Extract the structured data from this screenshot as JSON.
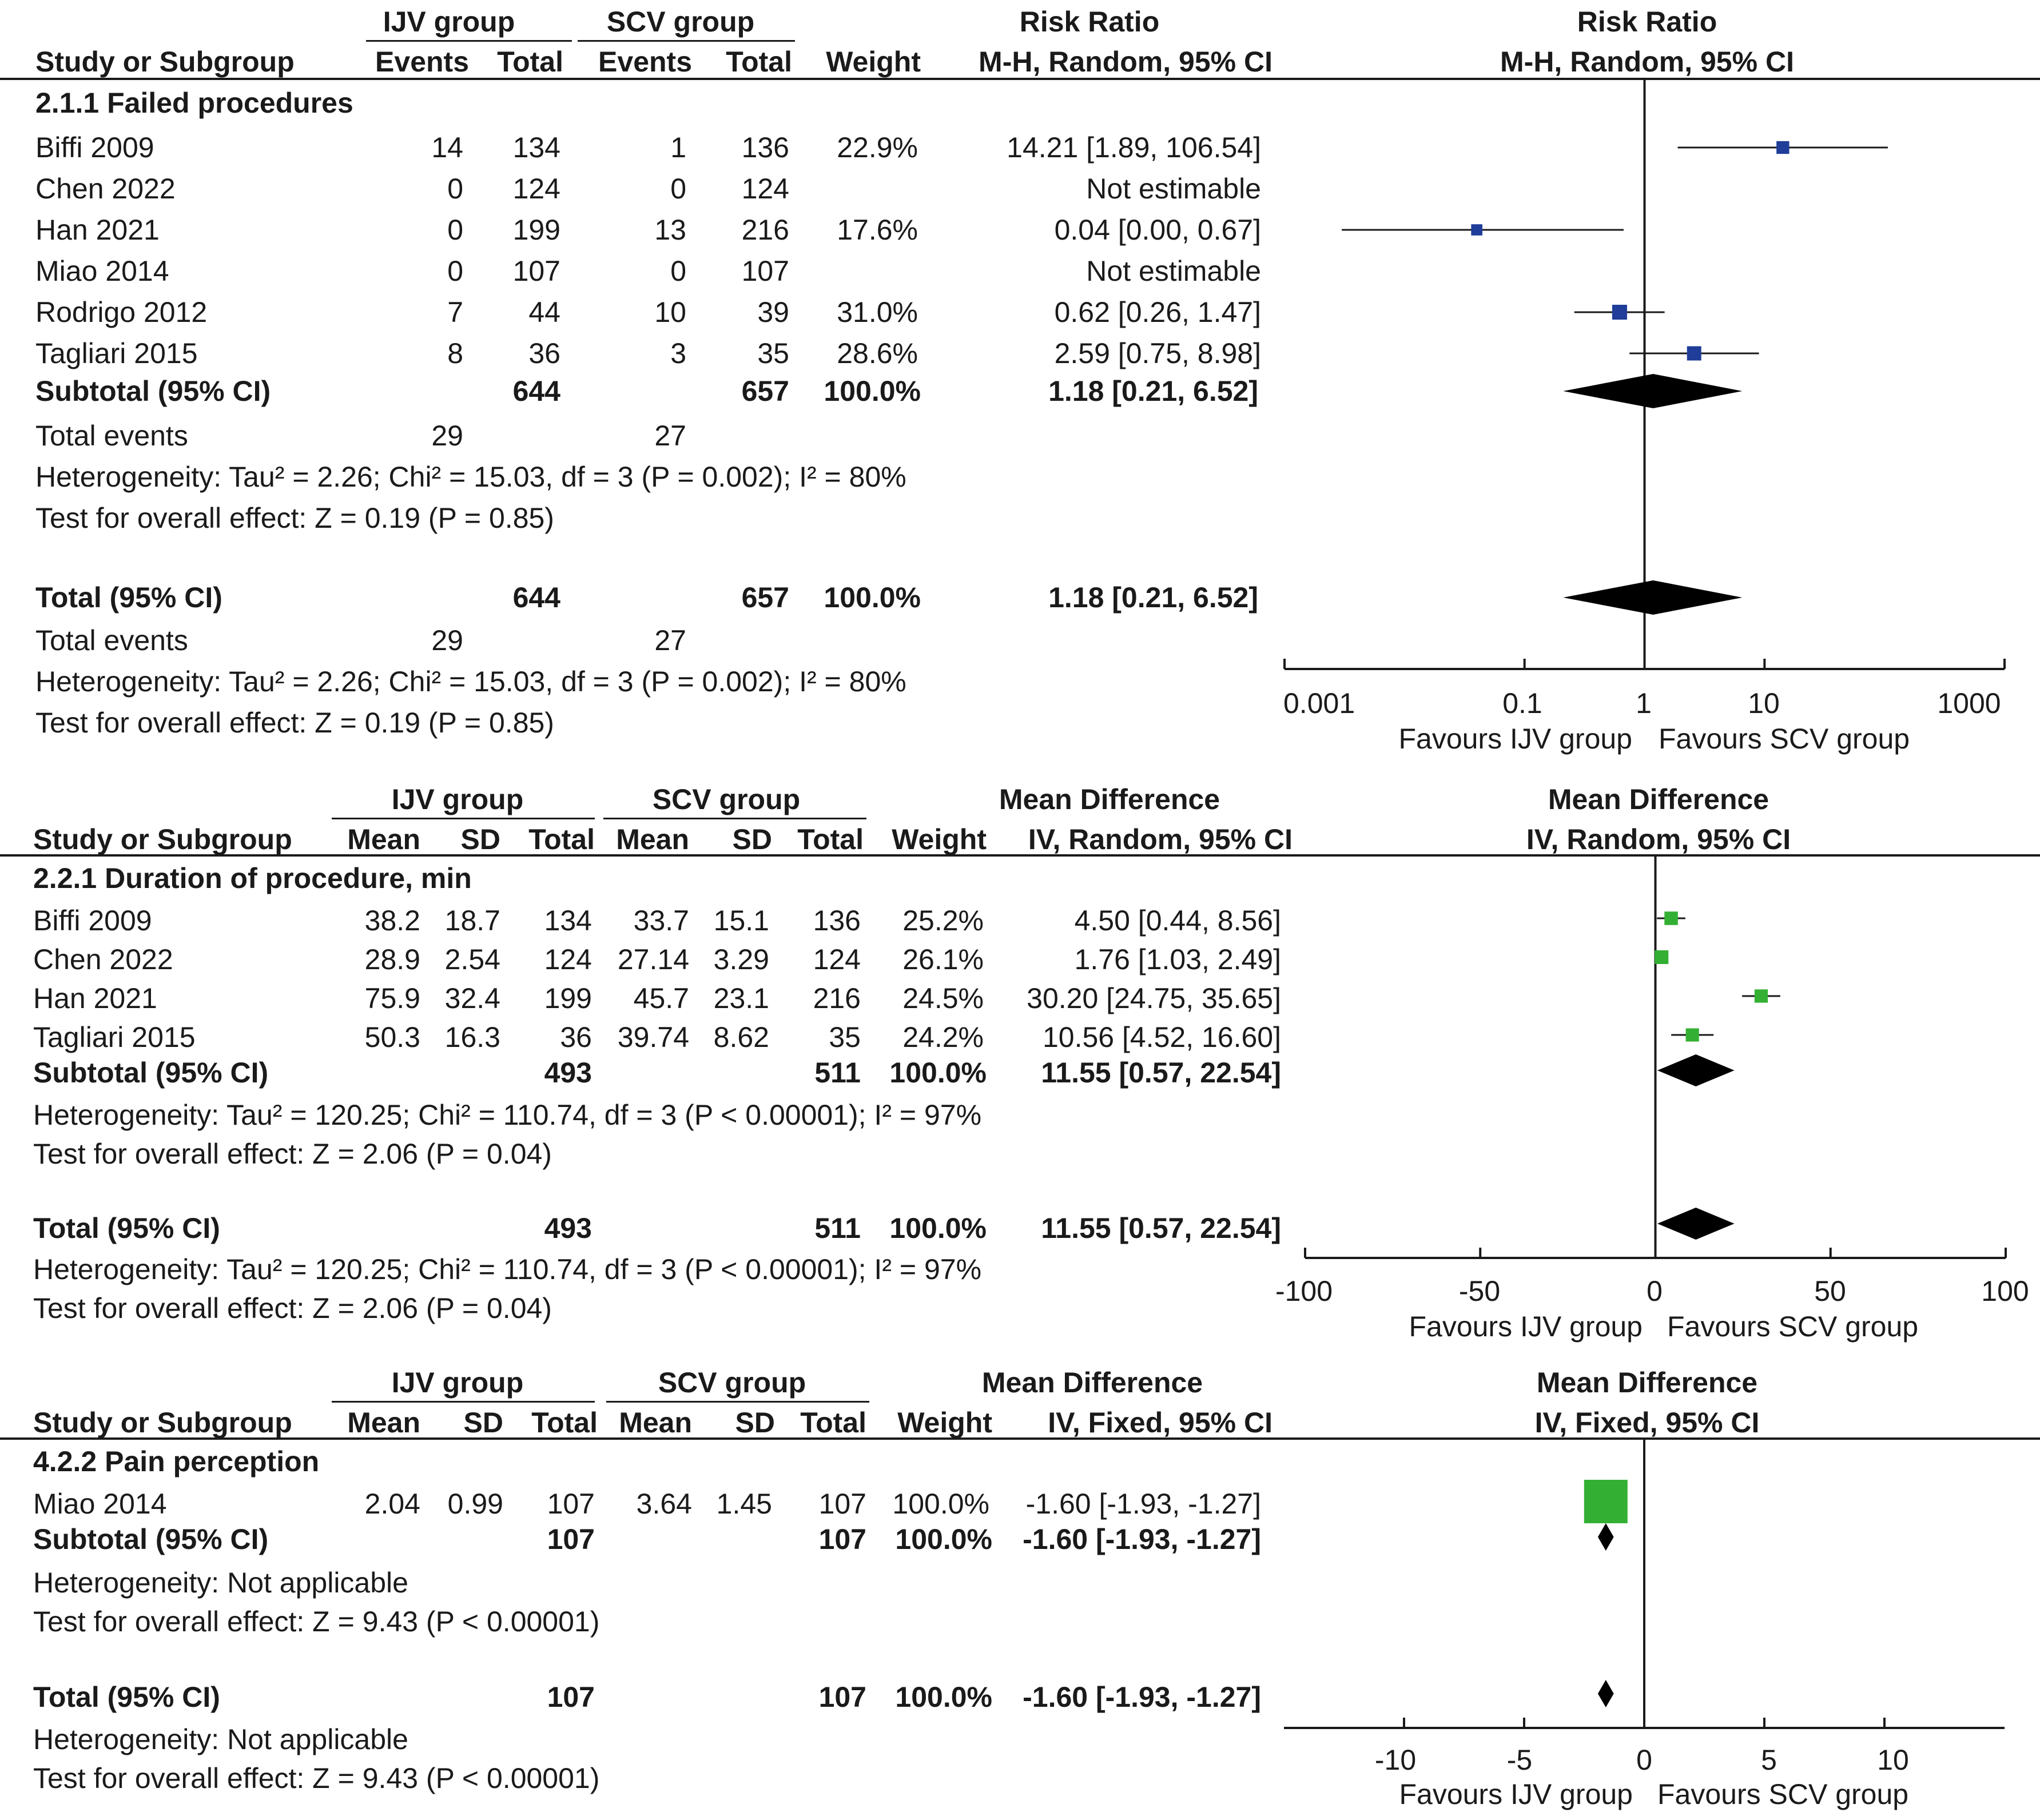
{
  "chart_data": [
    {
      "type": "forest",
      "measure": "Risk Ratio",
      "method": "M-H, Random, 95% CI",
      "scale": "log",
      "xlim": [
        0.001,
        1000
      ],
      "null_value": 1,
      "tick_values": [
        0.001,
        0.1,
        1,
        10,
        1000
      ],
      "tick_labels": [
        "0.001",
        "0.1",
        "1",
        "10",
        "1000"
      ],
      "favours_left": "Favours IJV group",
      "favours_right": "Favours SCV group",
      "header": {
        "group1": "IJV group",
        "group2": "SCV group",
        "study": "Study or Subgroup",
        "events": "Events",
        "total": "Total",
        "weight": "Weight",
        "measure": "Risk Ratio",
        "method": "M-H, Random, 95% CI"
      },
      "subgroup_title": "2.1.1 Failed procedures",
      "studies": [
        {
          "name": "Biffi 2009",
          "e1": "14",
          "n1": "134",
          "e2": "1",
          "n2": "136",
          "weight": "22.9%",
          "ci_text": "14.21 [1.89, 106.54]",
          "est": 14.21,
          "lo": 1.89,
          "hi": 106.54,
          "w": 22.9
        },
        {
          "name": "Chen 2022",
          "e1": "0",
          "n1": "124",
          "e2": "0",
          "n2": "124",
          "weight": "",
          "ci_text": "Not estimable",
          "est": null,
          "lo": null,
          "hi": null,
          "w": 0
        },
        {
          "name": "Han 2021",
          "e1": "0",
          "n1": "199",
          "e2": "13",
          "n2": "216",
          "weight": "17.6%",
          "ci_text": "0.04 [0.00, 0.67]",
          "est": 0.04,
          "lo": 0.003,
          "hi": 0.67,
          "w": 17.6
        },
        {
          "name": "Miao 2014",
          "e1": "0",
          "n1": "107",
          "e2": "0",
          "n2": "107",
          "weight": "",
          "ci_text": "Not estimable",
          "est": null,
          "lo": null,
          "hi": null,
          "w": 0
        },
        {
          "name": "Rodrigo 2012",
          "e1": "7",
          "n1": "44",
          "e2": "10",
          "n2": "39",
          "weight": "31.0%",
          "ci_text": "0.62 [0.26, 1.47]",
          "est": 0.62,
          "lo": 0.26,
          "hi": 1.47,
          "w": 31.0
        },
        {
          "name": "Tagliari 2015",
          "e1": "8",
          "n1": "36",
          "e2": "3",
          "n2": "35",
          "weight": "28.6%",
          "ci_text": "2.59 [0.75, 8.98]",
          "est": 2.59,
          "lo": 0.75,
          "hi": 8.98,
          "w": 28.6
        }
      ],
      "subtotal": {
        "label": "Subtotal (95% CI)",
        "n1": "644",
        "n2": "657",
        "weight": "100.0%",
        "ci_text": "1.18 [0.21, 6.52]",
        "est": 1.18,
        "lo": 0.21,
        "hi": 6.52
      },
      "subtotal_events": {
        "label": "Total events",
        "e1": "29",
        "e2": "27"
      },
      "subtotal_het": "Heterogeneity: Tau² = 2.26; Chi² = 15.03, df = 3 (P = 0.002); I² = 80%",
      "subtotal_test": "Test for overall effect: Z = 0.19 (P = 0.85)",
      "total": {
        "label": "Total (95% CI)",
        "n1": "644",
        "n2": "657",
        "weight": "100.0%",
        "ci_text": "1.18 [0.21, 6.52]",
        "est": 1.18,
        "lo": 0.21,
        "hi": 6.52
      },
      "total_events": {
        "label": "Total events",
        "e1": "29",
        "e2": "27"
      },
      "total_het": "Heterogeneity: Tau² = 2.26; Chi² = 15.03, df = 3 (P = 0.002); I² = 80%",
      "total_test": "Test for overall effect: Z = 0.19 (P = 0.85)",
      "colors": {
        "marker": "#1f3d99",
        "line": "#1a1a1a",
        "diamond": "#000000"
      }
    },
    {
      "type": "forest",
      "measure": "Mean Difference",
      "method": "IV, Random, 95% CI",
      "scale": "linear",
      "xlim": [
        -100,
        100
      ],
      "null_value": 0,
      "tick_values": [
        -100,
        -50,
        0,
        50,
        100
      ],
      "tick_labels": [
        "-100",
        "-50",
        "0",
        "50",
        "100"
      ],
      "favours_left": "Favours IJV group",
      "favours_right": "Favours SCV group",
      "header": {
        "group1": "IJV group",
        "group2": "SCV group",
        "study": "Study or Subgroup",
        "mean": "Mean",
        "sd": "SD",
        "total": "Total",
        "weight": "Weight",
        "measure": "Mean Difference",
        "method": "IV, Random, 95% CI"
      },
      "subgroup_title": "2.2.1 Duration of procedure, min",
      "studies": [
        {
          "name": "Biffi 2009",
          "m1": "38.2",
          "sd1": "18.7",
          "n1": "134",
          "m2": "33.7",
          "sd2": "15.1",
          "n2": "136",
          "weight": "25.2%",
          "ci_text": "4.50 [0.44, 8.56]",
          "est": 4.5,
          "lo": 0.44,
          "hi": 8.56,
          "w": 25.2
        },
        {
          "name": "Chen 2022",
          "m1": "28.9",
          "sd1": "2.54",
          "n1": "124",
          "m2": "27.14",
          "sd2": "3.29",
          "n2": "124",
          "weight": "26.1%",
          "ci_text": "1.76 [1.03, 2.49]",
          "est": 1.76,
          "lo": 1.03,
          "hi": 2.49,
          "w": 26.1
        },
        {
          "name": "Han 2021",
          "m1": "75.9",
          "sd1": "32.4",
          "n1": "199",
          "m2": "45.7",
          "sd2": "23.1",
          "n2": "216",
          "weight": "24.5%",
          "ci_text": "30.20 [24.75, 35.65]",
          "est": 30.2,
          "lo": 24.75,
          "hi": 35.65,
          "w": 24.5
        },
        {
          "name": "Tagliari 2015",
          "m1": "50.3",
          "sd1": "16.3",
          "n1": "36",
          "m2": "39.74",
          "sd2": "8.62",
          "n2": "35",
          "weight": "24.2%",
          "ci_text": "10.56 [4.52, 16.60]",
          "est": 10.56,
          "lo": 4.52,
          "hi": 16.6,
          "w": 24.2
        }
      ],
      "subtotal": {
        "label": "Subtotal (95% CI)",
        "n1": "493",
        "n2": "511",
        "weight": "100.0%",
        "ci_text": "11.55 [0.57, 22.54]",
        "est": 11.55,
        "lo": 0.57,
        "hi": 22.54
      },
      "subtotal_het": "Heterogeneity: Tau² = 120.25; Chi² = 110.74, df = 3 (P < 0.00001); I² = 97%",
      "subtotal_test": "Test for overall effect: Z = 2.06 (P = 0.04)",
      "total": {
        "label": "Total (95% CI)",
        "n1": "493",
        "n2": "511",
        "weight": "100.0%",
        "ci_text": "11.55 [0.57, 22.54]",
        "est": 11.55,
        "lo": 0.57,
        "hi": 22.54
      },
      "total_het": "Heterogeneity: Tau² = 120.25; Chi² = 110.74, df = 3 (P < 0.00001); I² = 97%",
      "total_test": "Test for overall effect: Z = 2.06 (P = 0.04)",
      "colors": {
        "marker": "#33b033",
        "line": "#1a1a1a",
        "diamond": "#000000"
      }
    },
    {
      "type": "forest",
      "measure": "Mean Difference",
      "method": "IV, Fixed, 95% CI",
      "scale": "linear",
      "xlim": [
        -15,
        15
      ],
      "null_value": 0,
      "tick_values": [
        -10,
        -5,
        0,
        5,
        10
      ],
      "tick_labels": [
        "-10",
        "-5",
        "0",
        "5",
        "10"
      ],
      "favours_left": "Favours IJV group",
      "favours_right": "Favours SCV group",
      "header": {
        "group1": "IJV group",
        "group2": "SCV group",
        "study": "Study or Subgroup",
        "mean": "Mean",
        "sd": "SD",
        "total": "Total",
        "weight": "Weight",
        "measure": "Mean Difference",
        "method": "IV, Fixed, 95% CI"
      },
      "subgroup_title": "4.2.2 Pain perception",
      "studies": [
        {
          "name": "Miao 2014",
          "m1": "2.04",
          "sd1": "0.99",
          "n1": "107",
          "m2": "3.64",
          "sd2": "1.45",
          "n2": "107",
          "weight": "100.0%",
          "ci_text": "-1.60 [-1.93, -1.27]",
          "est": -1.6,
          "lo": -1.93,
          "hi": -1.27,
          "w": 100.0
        }
      ],
      "subtotal": {
        "label": "Subtotal (95% CI)",
        "n1": "107",
        "n2": "107",
        "weight": "100.0%",
        "ci_text": "-1.60 [-1.93, -1.27]",
        "est": -1.6,
        "lo": -1.93,
        "hi": -1.27
      },
      "subtotal_het": "Heterogeneity: Not applicable",
      "subtotal_test": "Test for overall effect: Z = 9.43 (P < 0.00001)",
      "total": {
        "label": "Total (95% CI)",
        "n1": "107",
        "n2": "107",
        "weight": "100.0%",
        "ci_text": "-1.60 [-1.93, -1.27]",
        "est": -1.6,
        "lo": -1.93,
        "hi": -1.27
      },
      "total_het": "Heterogeneity: Not applicable",
      "total_test": "Test for overall effect: Z = 9.43 (P < 0.00001)",
      "colors": {
        "marker": "#33b033",
        "line": "#1a1a1a",
        "diamond": "#000000"
      }
    }
  ]
}
